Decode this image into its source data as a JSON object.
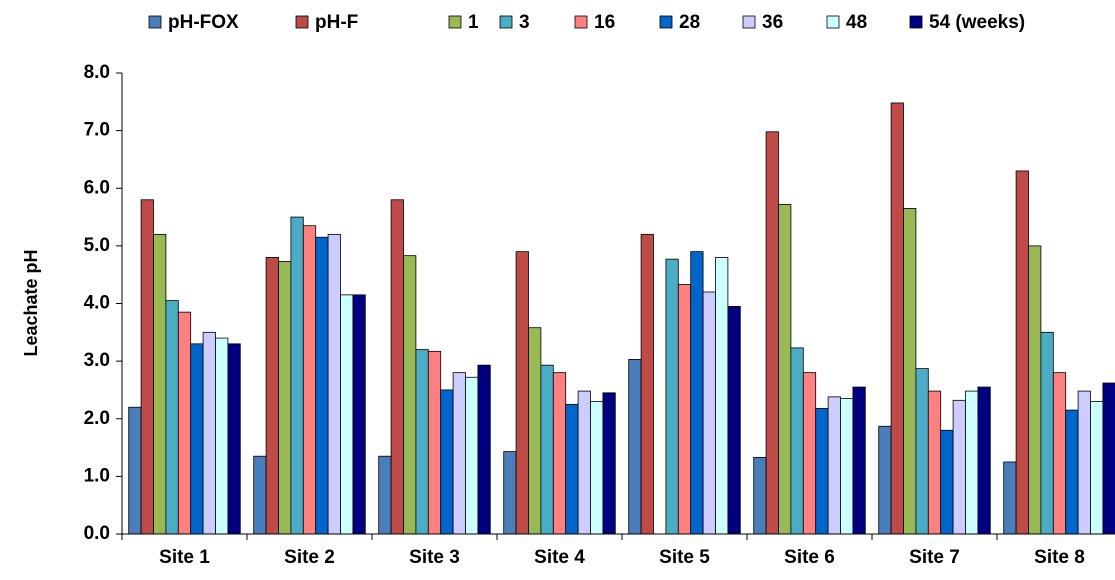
{
  "chart_data": {
    "type": "bar",
    "y_label": "Leachate pH",
    "categories": [
      "Site 1",
      "Site 2",
      "Site 3",
      "Site 4",
      "Site 5",
      "Site 6",
      "Site 7",
      "Site 8"
    ],
    "series": [
      {
        "name": "pH-FOX",
        "color": "#4a7ebb",
        "values": [
          2.2,
          1.35,
          1.35,
          1.43,
          3.03,
          1.33,
          1.87,
          1.25
        ]
      },
      {
        "name": "pH-F",
        "color": "#be4b48",
        "values": [
          5.8,
          4.8,
          5.8,
          4.9,
          5.2,
          6.98,
          7.48,
          6.3
        ]
      },
      {
        "name": "1",
        "color": "#98b954",
        "values": [
          5.2,
          4.73,
          4.83,
          3.58,
          null,
          5.72,
          5.65,
          5.0
        ]
      },
      {
        "name": "3",
        "color": "#4bacc6",
        "values": [
          4.05,
          5.5,
          3.2,
          2.93,
          4.77,
          3.23,
          2.87,
          3.5
        ]
      },
      {
        "name": "16",
        "color": "#ff8080",
        "values": [
          3.85,
          5.35,
          3.17,
          2.8,
          4.33,
          2.8,
          2.48,
          2.8
        ]
      },
      {
        "name": "28",
        "color": "#0066cc",
        "values": [
          3.3,
          5.15,
          2.5,
          2.25,
          4.9,
          2.18,
          1.8,
          2.15
        ]
      },
      {
        "name": "36",
        "color": "#ccccff",
        "values": [
          3.5,
          5.2,
          2.8,
          2.48,
          4.2,
          2.38,
          2.32,
          2.48
        ]
      },
      {
        "name": "48",
        "color": "#ccffff",
        "values": [
          3.4,
          4.15,
          2.72,
          2.3,
          4.8,
          2.35,
          2.48,
          2.3
        ]
      },
      {
        "name": "54 (weeks)",
        "color": "#000080",
        "values": [
          3.3,
          4.15,
          2.93,
          2.45,
          3.95,
          2.55,
          2.55,
          2.62
        ]
      }
    ],
    "ylim": [
      0,
      8
    ],
    "yticks": [
      {
        "value": 0,
        "label": "0.0"
      },
      {
        "value": 1,
        "label": "1.0"
      },
      {
        "value": 2,
        "label": "2.0"
      },
      {
        "value": 3,
        "label": "3.0"
      },
      {
        "value": 4,
        "label": "4.0"
      },
      {
        "value": 5,
        "label": "5.0"
      },
      {
        "value": 6,
        "label": "6.0"
      },
      {
        "value": 7,
        "label": "7.0"
      },
      {
        "value": 8,
        "label": "8.0"
      }
    ],
    "legend": "top"
  }
}
